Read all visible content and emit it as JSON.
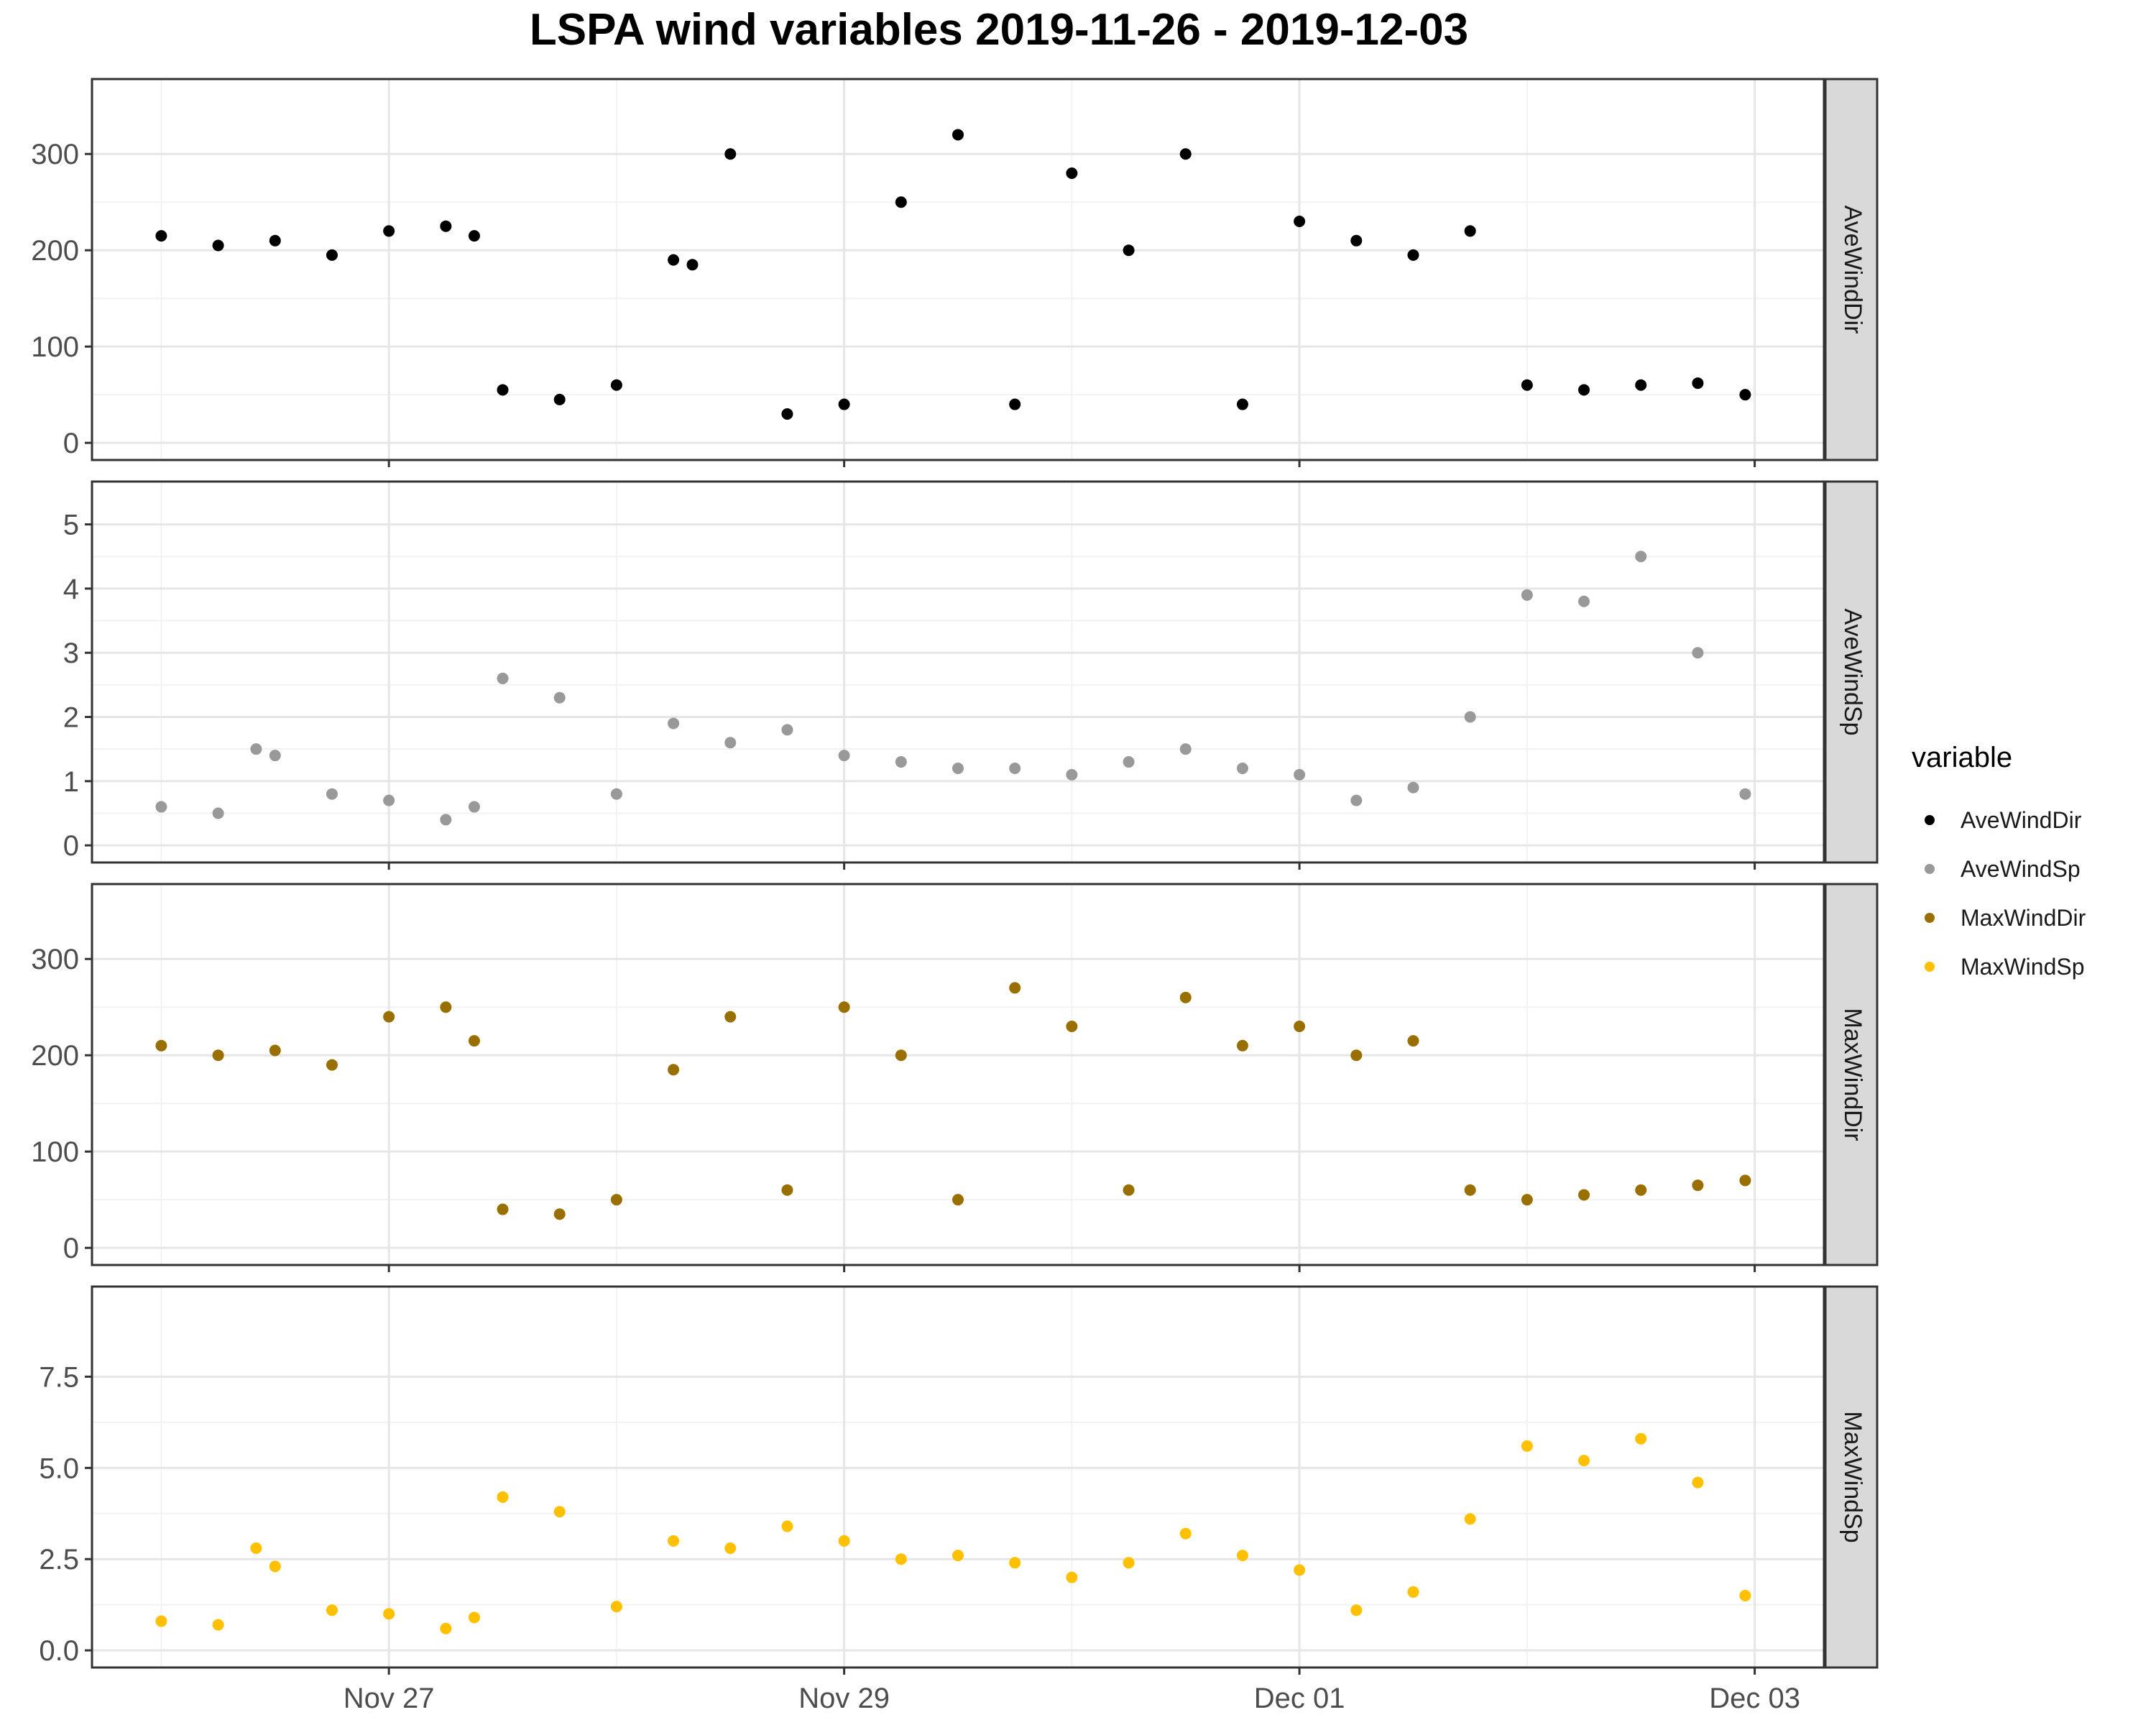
{
  "chart_data": {
    "type": "scatter",
    "title": "LSPA wind variables 2019-11-26 - 2019-12-03",
    "x_ticks": [
      "Nov 27",
      "Nov 29",
      "Dec 01",
      "Dec 03"
    ],
    "xlim": [
      "2019-11-26 00:00",
      "2019-12-03 00:00"
    ],
    "legend": {
      "title": "variable",
      "position": "right",
      "entries": [
        {
          "name": "AveWindDir",
          "color": "#000000"
        },
        {
          "name": "AveWindSp",
          "color": "#999999"
        },
        {
          "name": "MaxWindDir",
          "color": "#997000"
        },
        {
          "name": "MaxWindSp",
          "color": "#FFC000"
        }
      ]
    },
    "panels": [
      {
        "strip_label": "AveWindDir",
        "color": "#000000",
        "ylim": [
          0,
          360
        ],
        "y_ticks": [
          "0",
          "100",
          "200",
          "300"
        ],
        "x": [
          "2019-11-26 00:00",
          "2019-11-26 06:00",
          "2019-11-26 12:00",
          "2019-11-26 18:00",
          "2019-11-27 00:00",
          "2019-11-27 06:00",
          "2019-11-27 09:00",
          "2019-11-27 12:00",
          "2019-11-27 18:00",
          "2019-11-28 00:00",
          "2019-11-28 06:00",
          "2019-11-28 08:00",
          "2019-11-28 12:00",
          "2019-11-28 18:00",
          "2019-11-29 00:00",
          "2019-11-29 06:00",
          "2019-11-29 12:00",
          "2019-11-29 18:00",
          "2019-11-30 00:00",
          "2019-11-30 06:00",
          "2019-11-30 12:00",
          "2019-11-30 18:00",
          "2019-12-01 00:00",
          "2019-12-01 06:00",
          "2019-12-01 12:00",
          "2019-12-01 18:00",
          "2019-12-02 00:00",
          "2019-12-02 06:00",
          "2019-12-02 12:00",
          "2019-12-02 18:00",
          "2019-12-02 23:00"
        ],
        "y": [
          215,
          205,
          210,
          195,
          220,
          225,
          215,
          55,
          45,
          60,
          190,
          185,
          300,
          30,
          40,
          250,
          320,
          40,
          280,
          200,
          300,
          40,
          230,
          210,
          195,
          220,
          60,
          55,
          60,
          62,
          50
        ]
      },
      {
        "strip_label": "AveWindSp",
        "color": "#999999",
        "ylim": [
          0,
          5.4
        ],
        "y_ticks": [
          "0",
          "1",
          "2",
          "3",
          "4",
          "5"
        ],
        "x": [
          "2019-11-26 00:00",
          "2019-11-26 06:00",
          "2019-11-26 10:00",
          "2019-11-26 12:00",
          "2019-11-26 18:00",
          "2019-11-27 00:00",
          "2019-11-27 06:00",
          "2019-11-27 09:00",
          "2019-11-27 12:00",
          "2019-11-27 18:00",
          "2019-11-28 00:00",
          "2019-11-28 06:00",
          "2019-11-28 12:00",
          "2019-11-28 18:00",
          "2019-11-29 00:00",
          "2019-11-29 06:00",
          "2019-11-29 12:00",
          "2019-11-29 18:00",
          "2019-11-30 00:00",
          "2019-11-30 06:00",
          "2019-11-30 12:00",
          "2019-11-30 18:00",
          "2019-12-01 00:00",
          "2019-12-01 06:00",
          "2019-12-01 12:00",
          "2019-12-01 18:00",
          "2019-12-02 00:00",
          "2019-12-02 06:00",
          "2019-12-02 12:00",
          "2019-12-02 18:00",
          "2019-12-02 23:00"
        ],
        "y": [
          0.6,
          0.5,
          1.5,
          1.4,
          0.8,
          0.7,
          0.4,
          0.6,
          2.6,
          2.3,
          0.8,
          1.9,
          1.6,
          1.8,
          1.4,
          1.3,
          1.2,
          1.2,
          1.1,
          1.3,
          1.5,
          1.2,
          1.1,
          0.7,
          0.9,
          2.0,
          3.9,
          3.8,
          4.5,
          3.0,
          0.8
        ]
      },
      {
        "strip_label": "MaxWindDir",
        "color": "#997000",
        "ylim": [
          0,
          360
        ],
        "y_ticks": [
          "0",
          "100",
          "200",
          "300"
        ],
        "x": [
          "2019-11-26 00:00",
          "2019-11-26 06:00",
          "2019-11-26 12:00",
          "2019-11-26 18:00",
          "2019-11-27 00:00",
          "2019-11-27 06:00",
          "2019-11-27 09:00",
          "2019-11-27 12:00",
          "2019-11-27 18:00",
          "2019-11-28 00:00",
          "2019-11-28 06:00",
          "2019-11-28 12:00",
          "2019-11-28 18:00",
          "2019-11-29 00:00",
          "2019-11-29 06:00",
          "2019-11-29 12:00",
          "2019-11-29 18:00",
          "2019-11-30 00:00",
          "2019-11-30 06:00",
          "2019-11-30 12:00",
          "2019-11-30 18:00",
          "2019-12-01 00:00",
          "2019-12-01 06:00",
          "2019-12-01 12:00",
          "2019-12-01 18:00",
          "2019-12-02 00:00",
          "2019-12-02 06:00",
          "2019-12-02 12:00",
          "2019-12-02 18:00",
          "2019-12-02 23:00"
        ],
        "y": [
          210,
          200,
          205,
          190,
          240,
          250,
          215,
          40,
          35,
          50,
          185,
          240,
          60,
          250,
          200,
          50,
          270,
          230,
          60,
          260,
          210,
          230,
          200,
          215,
          60,
          50,
          55,
          60,
          65,
          70
        ]
      },
      {
        "strip_label": "MaxWindSp",
        "color": "#FFC000",
        "ylim": [
          0,
          9.5
        ],
        "y_ticks": [
          "0.0",
          "2.5",
          "5.0",
          "7.5"
        ],
        "x": [
          "2019-11-26 00:00",
          "2019-11-26 06:00",
          "2019-11-26 10:00",
          "2019-11-26 12:00",
          "2019-11-26 18:00",
          "2019-11-27 00:00",
          "2019-11-27 06:00",
          "2019-11-27 09:00",
          "2019-11-27 12:00",
          "2019-11-27 18:00",
          "2019-11-28 00:00",
          "2019-11-28 06:00",
          "2019-11-28 12:00",
          "2019-11-28 18:00",
          "2019-11-29 00:00",
          "2019-11-29 06:00",
          "2019-11-29 12:00",
          "2019-11-29 18:00",
          "2019-11-30 00:00",
          "2019-11-30 06:00",
          "2019-11-30 12:00",
          "2019-11-30 18:00",
          "2019-12-01 00:00",
          "2019-12-01 06:00",
          "2019-12-01 12:00",
          "2019-12-01 18:00",
          "2019-12-02 00:00",
          "2019-12-02 06:00",
          "2019-12-02 12:00",
          "2019-12-02 18:00",
          "2019-12-02 23:00"
        ],
        "y": [
          0.8,
          0.7,
          2.8,
          2.3,
          1.1,
          1.0,
          0.6,
          0.9,
          4.2,
          3.8,
          1.2,
          3.0,
          2.8,
          3.4,
          3.0,
          2.5,
          2.6,
          2.4,
          2.0,
          2.4,
          3.2,
          2.6,
          2.2,
          1.1,
          1.6,
          3.6,
          5.6,
          5.2,
          5.8,
          4.6,
          1.5
        ]
      }
    ]
  }
}
